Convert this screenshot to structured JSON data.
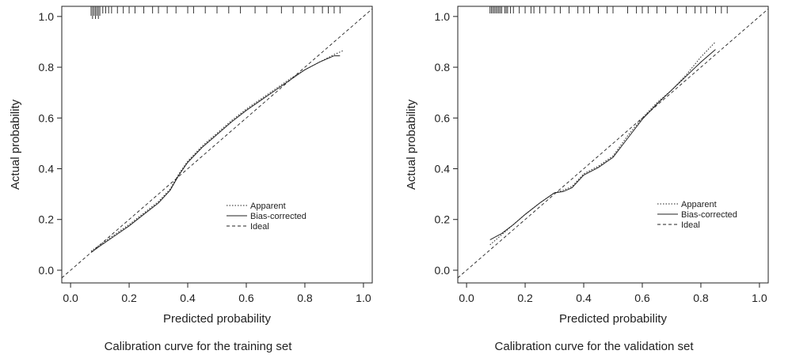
{
  "chart_data": [
    {
      "type": "line",
      "title": "Calibration curve for the training set",
      "xlabel": "Predicted probability",
      "ylabel": "Actual probability",
      "xlim": [
        -0.03,
        1.03
      ],
      "ylim": [
        -0.05,
        1.04
      ],
      "xticks": [
        "0.0",
        "0.2",
        "0.4",
        "0.6",
        "0.8",
        "1.0"
      ],
      "yticks": [
        "0.0",
        "0.2",
        "0.4",
        "0.6",
        "0.8",
        "1.0"
      ],
      "legend": {
        "position": "lower-right",
        "entries": [
          "Apparent",
          "Bias-corrected",
          "Ideal"
        ]
      },
      "series": [
        {
          "name": "Apparent",
          "style": "dotted",
          "x": [
            0.07,
            0.1,
            0.15,
            0.2,
            0.25,
            0.3,
            0.34,
            0.37,
            0.4,
            0.45,
            0.5,
            0.55,
            0.6,
            0.65,
            0.7,
            0.75,
            0.8,
            0.85,
            0.9,
            0.93
          ],
          "y": [
            0.075,
            0.1,
            0.14,
            0.18,
            0.225,
            0.27,
            0.32,
            0.38,
            0.43,
            0.49,
            0.54,
            0.59,
            0.635,
            0.675,
            0.715,
            0.755,
            0.79,
            0.82,
            0.85,
            0.865
          ]
        },
        {
          "name": "Bias-corrected",
          "style": "solid",
          "x": [
            0.07,
            0.1,
            0.15,
            0.2,
            0.25,
            0.3,
            0.34,
            0.37,
            0.4,
            0.45,
            0.5,
            0.55,
            0.6,
            0.65,
            0.7,
            0.75,
            0.8,
            0.85,
            0.9,
            0.92
          ],
          "y": [
            0.07,
            0.095,
            0.135,
            0.175,
            0.22,
            0.265,
            0.315,
            0.375,
            0.425,
            0.485,
            0.535,
            0.585,
            0.63,
            0.67,
            0.71,
            0.75,
            0.79,
            0.82,
            0.845,
            0.845
          ]
        },
        {
          "name": "Ideal",
          "style": "dashed",
          "x": [
            -0.03,
            1.03
          ],
          "y": [
            -0.03,
            1.03
          ]
        }
      ],
      "rug": [
        0.07,
        0.075,
        0.08,
        0.085,
        0.09,
        0.095,
        0.1,
        0.11,
        0.12,
        0.13,
        0.14,
        0.16,
        0.18,
        0.2,
        0.22,
        0.25,
        0.28,
        0.3,
        0.33,
        0.36,
        0.4,
        0.42,
        0.46,
        0.5,
        0.54,
        0.58,
        0.63,
        0.67,
        0.72,
        0.76,
        0.8,
        0.83,
        0.86,
        0.88,
        0.9,
        0.92
      ]
    },
    {
      "type": "line",
      "title": "Calibration curve for the validation set",
      "xlabel": "Predicted probability",
      "ylabel": "Actual probability",
      "xlim": [
        -0.03,
        1.03
      ],
      "ylim": [
        -0.05,
        1.04
      ],
      "xticks": [
        "0.0",
        "0.2",
        "0.4",
        "0.6",
        "0.8",
        "1.0"
      ],
      "yticks": [
        "0.0",
        "0.2",
        "0.4",
        "0.6",
        "0.8",
        "1.0"
      ],
      "legend": {
        "position": "lower-right",
        "entries": [
          "Apparent",
          "Bias-corrected",
          "Ideal"
        ]
      },
      "series": [
        {
          "name": "Apparent",
          "style": "dotted",
          "x": [
            0.08,
            0.12,
            0.16,
            0.2,
            0.25,
            0.3,
            0.33,
            0.36,
            0.4,
            0.45,
            0.5,
            0.55,
            0.6,
            0.65,
            0.7,
            0.75,
            0.8,
            0.85
          ],
          "y": [
            0.1,
            0.14,
            0.18,
            0.22,
            0.265,
            0.305,
            0.315,
            0.33,
            0.38,
            0.41,
            0.45,
            0.53,
            0.6,
            0.66,
            0.71,
            0.77,
            0.84,
            0.9
          ]
        },
        {
          "name": "Bias-corrected",
          "style": "solid",
          "x": [
            0.08,
            0.12,
            0.16,
            0.2,
            0.25,
            0.3,
            0.33,
            0.36,
            0.4,
            0.45,
            0.5,
            0.55,
            0.6,
            0.65,
            0.7,
            0.75,
            0.8,
            0.85
          ],
          "y": [
            0.12,
            0.145,
            0.18,
            0.22,
            0.265,
            0.305,
            0.31,
            0.325,
            0.375,
            0.405,
            0.445,
            0.52,
            0.595,
            0.655,
            0.71,
            0.765,
            0.82,
            0.87
          ]
        },
        {
          "name": "Ideal",
          "style": "dashed",
          "x": [
            -0.03,
            1.03
          ],
          "y": [
            -0.03,
            1.03
          ]
        }
      ],
      "rug": [
        0.08,
        0.085,
        0.09,
        0.095,
        0.1,
        0.105,
        0.11,
        0.115,
        0.12,
        0.13,
        0.135,
        0.14,
        0.15,
        0.16,
        0.18,
        0.2,
        0.22,
        0.23,
        0.25,
        0.27,
        0.3,
        0.32,
        0.35,
        0.38,
        0.4,
        0.42,
        0.45,
        0.48,
        0.5,
        0.55,
        0.58,
        0.6,
        0.62,
        0.65,
        0.68,
        0.72,
        0.75,
        0.78,
        0.8,
        0.82,
        0.85,
        0.87,
        0.89
      ]
    }
  ]
}
